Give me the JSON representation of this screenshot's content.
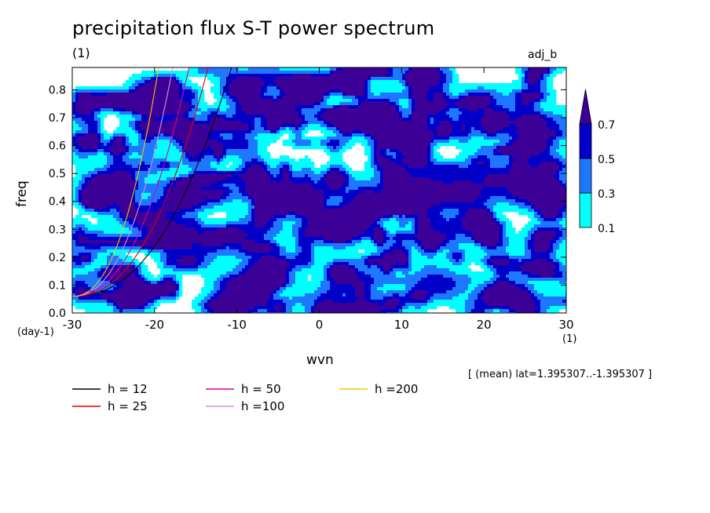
{
  "chart_data": {
    "type": "heatmap",
    "title": "precipitation flux S-T power spectrum",
    "subtitle_left": "(1)",
    "subtitle_right": "adj_b",
    "xlabel": "wvn",
    "ylabel": "freq",
    "x_unit": "(1)",
    "y_unit": "(day-1)",
    "xlim": [
      -30,
      30
    ],
    "ylim": [
      0,
      0.88
    ],
    "x_ticks": [
      -30,
      -20,
      -10,
      0,
      10,
      20,
      30
    ],
    "x_tick_labels": [
      "-30",
      "-20",
      "-10",
      "0",
      "10",
      "20",
      "30"
    ],
    "y_ticks": [
      0.0,
      0.1,
      0.2,
      0.3,
      0.4,
      0.5,
      0.6,
      0.7,
      0.8
    ],
    "y_tick_labels": [
      "0.0",
      "0.1",
      "0.2",
      "0.3",
      "0.4",
      "0.5",
      "0.6",
      "0.7",
      "0.8"
    ],
    "contour_levels": [
      0.1,
      0.3,
      0.5,
      0.7
    ],
    "colorbar_labels": [
      "0.1",
      "0.3",
      "0.5",
      "0.7"
    ],
    "fill_colors": [
      "#00ffff",
      "#1e78ff",
      "#0000c8",
      "#3c0096"
    ],
    "region_note": "[ (mean) lat=1.395307..-1.395307 ]",
    "dispersion_curves": [
      {
        "name": "h = 12",
        "h": 12,
        "color": "#000000"
      },
      {
        "name": "h = 25",
        "h": 25,
        "color": "#e00000"
      },
      {
        "name": "h = 50",
        "h": 50,
        "color": "#e000a0"
      },
      {
        "name": "h =100",
        "h": 100,
        "color": "#d890e0"
      },
      {
        "name": "h =200",
        "h": 200,
        "color": "#f0c800"
      }
    ],
    "grid": false,
    "legend_position": "bottom-left"
  }
}
